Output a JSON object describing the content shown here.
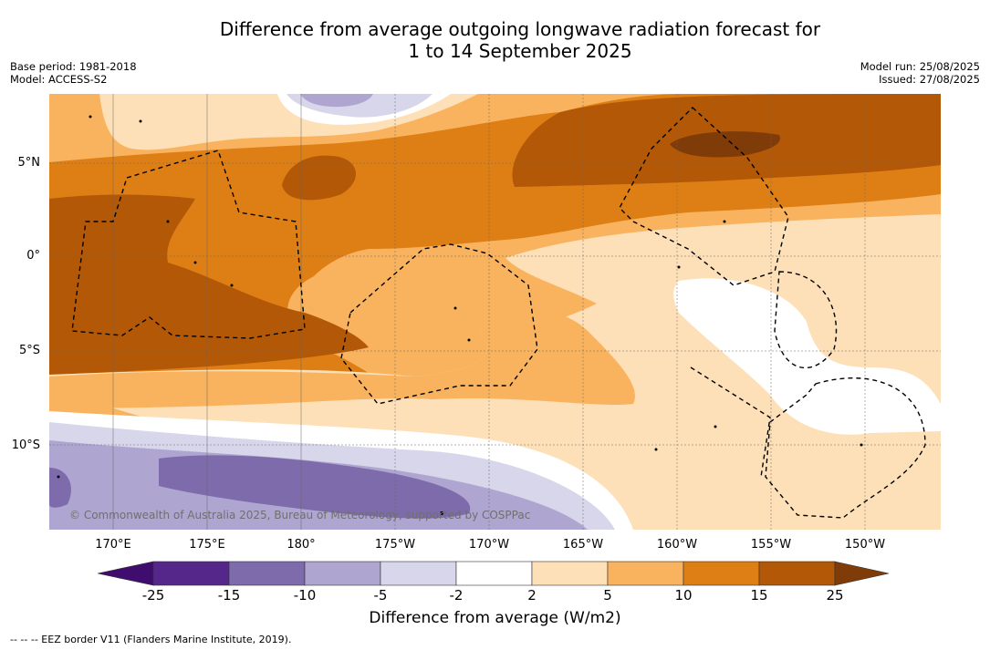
{
  "title_line1": "Difference from average outgoing longwave radiation forecast for",
  "title_line2": "1 to 14 September 2025",
  "base_period": "Base period: 1981-2018",
  "model": "Model: ACCESS-S2",
  "model_run": "Model run: 25/08/2025",
  "issued": "Issued: 27/08/2025",
  "lat_ticks": [
    "5°N",
    "0°",
    "5°S",
    "10°S"
  ],
  "lon_ticks": [
    "170°E",
    "175°E",
    "180°",
    "175°W",
    "170°W",
    "165°W",
    "160°W",
    "155°W",
    "150°W"
  ],
  "colorbar": {
    "labels": [
      "-25",
      "-15",
      "-10",
      "-5",
      "-2",
      "2",
      "5",
      "10",
      "15",
      "25"
    ],
    "colors": [
      "#3f0d6e",
      "#55278a",
      "#7d6bab",
      "#aea6d0",
      "#d7d6ea",
      "#ffffff",
      "#fde0b7",
      "#f9b35f",
      "#de7f16",
      "#b35806",
      "#7f3b08"
    ],
    "title": "Difference from average (W/m2)"
  },
  "copyright": "© Commonwealth of Australia 2025, Bureau of Meteorology, supported by COSPPac",
  "footnote": "--  --  -- EEZ border V11 (Flanders Marine Institute, 2019)."
}
